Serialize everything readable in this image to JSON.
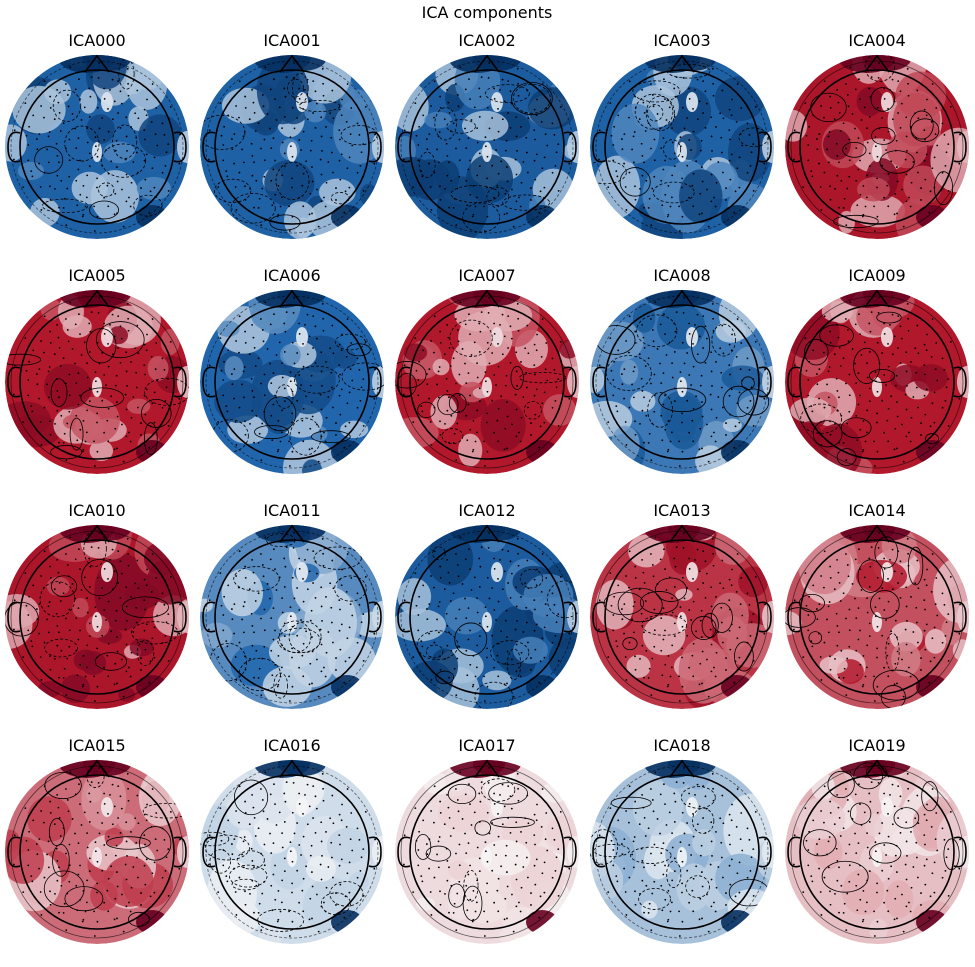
{
  "chart_data": {
    "type": "heatmap",
    "title": "ICA components",
    "colormap": "RdBu_r",
    "colors": {
      "red": "#b2182b",
      "white": "#f7f7f7",
      "blue": "#2166ac",
      "dark_red": "#67001f",
      "dark_blue": "#053061"
    },
    "grid": {
      "rows": 4,
      "cols": 5
    },
    "components": [
      {
        "label": "ICA000",
        "polarity": -0.85
      },
      {
        "label": "ICA001",
        "polarity": -0.85
      },
      {
        "label": "ICA002",
        "polarity": -0.9
      },
      {
        "label": "ICA003",
        "polarity": -0.85
      },
      {
        "label": "ICA004",
        "polarity": 0.85
      },
      {
        "label": "ICA005",
        "polarity": 0.8
      },
      {
        "label": "ICA006",
        "polarity": -0.8
      },
      {
        "label": "ICA007",
        "polarity": 0.8
      },
      {
        "label": "ICA008",
        "polarity": -0.7
      },
      {
        "label": "ICA009",
        "polarity": 0.8
      },
      {
        "label": "ICA010",
        "polarity": 0.85
      },
      {
        "label": "ICA011",
        "polarity": -0.6
      },
      {
        "label": "ICA012",
        "polarity": -0.9
      },
      {
        "label": "ICA013",
        "polarity": 0.7
      },
      {
        "label": "ICA014",
        "polarity": 0.6
      },
      {
        "label": "ICA015",
        "polarity": 0.5
      },
      {
        "label": "ICA016",
        "polarity": -0.15
      },
      {
        "label": "ICA017",
        "polarity": 0.1
      },
      {
        "label": "ICA018",
        "polarity": -0.3
      },
      {
        "label": "ICA019",
        "polarity": 0.2
      }
    ]
  }
}
